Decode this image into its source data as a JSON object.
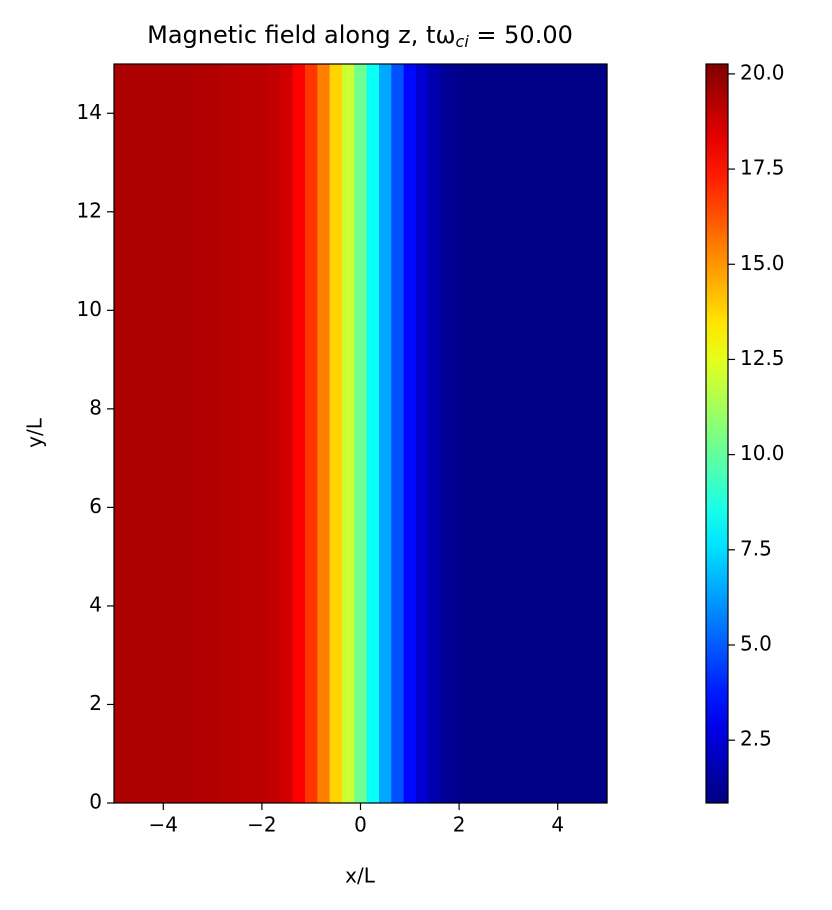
{
  "chart_data": {
    "type": "heatmap",
    "title": "Magnetic field along z, tω",
    "title_subscript": "ci",
    "title_suffix": " = 50.00",
    "x_label": "x/L",
    "y_label": "y/L",
    "colormap": "jet",
    "x": [
      -5,
      -4.75,
      -4.5,
      -4.25,
      -4,
      -3.75,
      -3.5,
      -3.25,
      -3,
      -2.75,
      -2.5,
      -2.25,
      -2,
      -1.75,
      -1.5,
      -1.25,
      -1,
      -0.75,
      -0.5,
      -0.25,
      0,
      0.25,
      0.5,
      0.75,
      1,
      1.25,
      1.5,
      1.75,
      2,
      2.25,
      2.5,
      2.75,
      3,
      3.25,
      3.5,
      3.75,
      4,
      4.25,
      4.5,
      4.75,
      5
    ],
    "values": [
      19.4,
      19.4,
      19.4,
      19.4,
      19.4,
      19.4,
      19.4,
      19.3,
      19.3,
      19.2,
      19.2,
      19.1,
      19.1,
      19.0,
      18.7,
      17.9,
      16.8,
      15.4,
      13.8,
      12.0,
      10.2,
      8.3,
      6.5,
      4.8,
      3.4,
      2.4,
      1.7,
      1.3,
      1.1,
      1.0,
      1.0,
      1.0,
      1.0,
      1.0,
      1.0,
      1.0,
      1.0,
      1.0,
      1.0,
      1.0,
      1.0
    ],
    "xlim": [
      -5,
      5
    ],
    "ylim": [
      0,
      15
    ],
    "xticks": [
      {
        "value": -4,
        "label": "−4"
      },
      {
        "value": -2,
        "label": "−2"
      },
      0,
      2,
      4
    ],
    "yticks": [
      0,
      2,
      4,
      6,
      8,
      10,
      12,
      14
    ],
    "clim": [
      0.85,
      20.26
    ],
    "cticks": [
      2.5,
      {
        "value": 5,
        "label": "5.0"
      },
      7.5,
      {
        "value": 10,
        "label": "10.0"
      },
      12.5,
      {
        "value": 15,
        "label": "15.0"
      },
      17.5,
      {
        "value": 20,
        "label": "20.0"
      }
    ]
  }
}
